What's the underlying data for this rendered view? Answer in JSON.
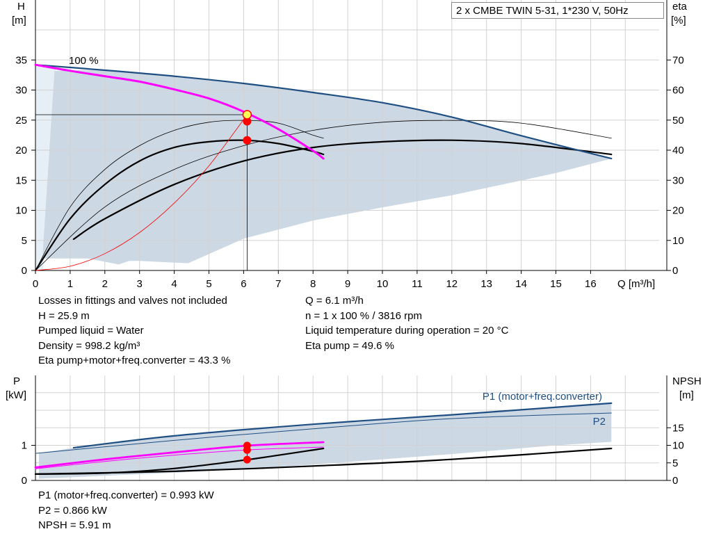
{
  "product_title": "2 x CMBE TWIN 5-31, 1*230 V, 50Hz",
  "colors": {
    "area": "#ccd8e4",
    "area_light": "#e6eef6",
    "qh_max": "#1f4f82",
    "pink": "#ff00ff",
    "duty": "#ff0000",
    "marker": "#ffff55"
  },
  "info_left": [
    "Losses in fittings and valves not included",
    "H = 25.9 m",
    "Pumped liquid = Water",
    "Density = 998.2 kg/m³",
    "Eta pump+motor+freq.converter = 43.3 %"
  ],
  "info_right": [
    "Q = 6.1 m³/h",
    "n = 1 x 100 % / 3816 rpm",
    "Liquid temperature during operation = 20 °C",
    "Eta pump = 49.6 %"
  ],
  "info_bottom": [
    "P1 (motor+freq.converter) = 0.993 kW",
    "P2 = 0.866 kW",
    "NPSH = 5.91 m"
  ],
  "chart_data": [
    {
      "type": "line",
      "name": "QH curve",
      "xlabel": "Q [m³/h]",
      "ylabel_left": [
        "H",
        "[m]"
      ],
      "ylabel_right": [
        "eta",
        "[%]"
      ],
      "xlim": [
        0,
        18
      ],
      "ylim_left": [
        0,
        40
      ],
      "ylim_right": [
        0,
        80
      ],
      "x_ticks": [
        "0",
        "1",
        "2",
        "3",
        "4",
        "5",
        "6",
        "7",
        "8",
        "9",
        "10",
        "11",
        "12",
        "13",
        "14",
        "15",
        "16"
      ],
      "y_ticks_left": [
        "0",
        "5",
        "10",
        "15",
        "20",
        "25",
        "30",
        "35"
      ],
      "y_ticks_right": [
        "0",
        "10",
        "20",
        "30",
        "40",
        "50",
        "60",
        "70"
      ],
      "grid": true,
      "annotations": [
        "100 %"
      ],
      "duty_point": {
        "q": 6.1,
        "h": 25.9,
        "h_pump": 24.8,
        "eta": 43.3
      },
      "series": [
        {
          "role": "qh-max-twin",
          "x": [
            0,
            2,
            4,
            6,
            8,
            10,
            12,
            14,
            16.6
          ],
          "y": [
            34.2,
            33.3,
            32.3,
            31.1,
            29.6,
            27.9,
            25.5,
            22.4,
            18.6
          ]
        },
        {
          "role": "qh-operating",
          "x": [
            0,
            1,
            2,
            3,
            4,
            5,
            6,
            7,
            8,
            8.3
          ],
          "y": [
            34.2,
            33.2,
            32.3,
            31.4,
            30.1,
            28.6,
            26.4,
            23.5,
            19.9,
            18.6
          ]
        },
        {
          "role": "eta-single-max",
          "x": [
            0,
            1,
            2,
            3,
            4,
            5,
            6,
            7,
            8,
            8.3
          ],
          "y": [
            0,
            21.1,
            33.6,
            41.5,
            46.6,
            49.3,
            49.9,
            49.0,
            45.0,
            44.0
          ]
        },
        {
          "role": "eta-single-operating",
          "x": [
            0,
            1,
            2,
            3,
            4,
            5,
            6,
            7,
            8,
            8.3
          ],
          "y": [
            0,
            17.2,
            28.6,
            36.4,
            40.9,
            42.8,
            43.3,
            42.2,
            39.6,
            38.6
          ]
        },
        {
          "role": "eta-twin-max",
          "x": [
            0,
            2,
            4,
            6,
            8,
            10,
            12,
            14,
            16.6
          ],
          "y": [
            0,
            21.1,
            33.6,
            41.5,
            46.6,
            49.3,
            49.9,
            49.0,
            44.0
          ]
        },
        {
          "role": "eta-twin-operating",
          "x": [
            1.1,
            2,
            4,
            6,
            8,
            10,
            12,
            14,
            16.6
          ],
          "y": [
            10.4,
            17.2,
            28.6,
            36.4,
            40.9,
            42.8,
            43.3,
            42.2,
            38.6
          ]
        },
        {
          "role": "system-curve",
          "x": [
            0,
            1,
            2,
            3,
            4,
            5,
            6.1
          ],
          "y": [
            0,
            0.7,
            2.8,
            6.3,
            11.2,
            17.4,
            25.9
          ]
        }
      ],
      "operating_range": {
        "upper_x": [
          0,
          2,
          4,
          6,
          8,
          10,
          12,
          14,
          16.6
        ],
        "upper_y": [
          34.2,
          33.3,
          32.3,
          31.1,
          29.6,
          27.9,
          25.5,
          22.4,
          18.6
        ],
        "lower_x": [
          16.6,
          15,
          12,
          10,
          8,
          6,
          4.4,
          3,
          2.7,
          2.4,
          1.5,
          0.2
        ],
        "lower_y": [
          18.6,
          16.2,
          12.5,
          10.5,
          8.3,
          5.3,
          1.2,
          1.6,
          1.6,
          1.0,
          2.0,
          2.0
        ]
      }
    },
    {
      "type": "line",
      "name": "Power / NPSH curve",
      "ylabel_left": [
        "P",
        "[kW]"
      ],
      "ylabel_right": [
        "NPSH",
        "[m]"
      ],
      "xlim": [
        0,
        18
      ],
      "ylim_left": [
        0,
        2
      ],
      "ylim_right": [
        0,
        20
      ],
      "y_ticks_left": [
        "0",
        "1"
      ],
      "y_ticks_right": [
        "0",
        "5",
        "10",
        "15"
      ],
      "grid": true,
      "series_labels": [
        "P1 (motor+freq.converter)",
        "P2"
      ],
      "duty_point": {
        "q": 6.1,
        "p1": 0.993,
        "p2": 0.866,
        "npsh": 5.91
      },
      "series": [
        {
          "role": "p1-twin",
          "x": [
            1.1,
            4,
            8,
            12,
            16.6
          ],
          "y": [
            0.93,
            1.27,
            1.6,
            1.87,
            2.2
          ]
        },
        {
          "role": "p2-twin",
          "x": [
            0,
            4,
            8,
            12,
            16.6
          ],
          "y": [
            0.77,
            1.14,
            1.47,
            1.76,
            1.92
          ]
        },
        {
          "role": "p1-single",
          "x": [
            0,
            2,
            4,
            6.1,
            8.3
          ],
          "y": [
            0.37,
            0.6,
            0.8,
            0.99,
            1.09
          ]
        },
        {
          "role": "p2-single",
          "x": [
            0,
            2,
            4,
            6.1,
            8.3
          ],
          "y": [
            0.33,
            0.54,
            0.72,
            0.87,
            0.95
          ]
        },
        {
          "role": "npsh-single",
          "x": [
            0,
            2,
            4,
            6.1,
            8.3
          ],
          "y": [
            1.8,
            2.1,
            3.4,
            5.9,
            9.1
          ]
        },
        {
          "role": "npsh-twin",
          "x": [
            0,
            4,
            8,
            12,
            16.6
          ],
          "y": [
            1.8,
            2.6,
            4.1,
            6.0,
            9.1
          ]
        }
      ],
      "operating_range": {
        "upper_x": [
          1.1,
          4,
          8,
          12,
          16.6
        ],
        "upper_y": [
          0.93,
          1.27,
          1.6,
          1.87,
          2.2
        ],
        "lower_x": [
          16.6,
          15,
          12,
          8,
          4,
          0.1
        ],
        "lower_y": [
          1.1,
          1.0,
          0.75,
          0.45,
          0.22,
          0.05
        ]
      }
    }
  ]
}
